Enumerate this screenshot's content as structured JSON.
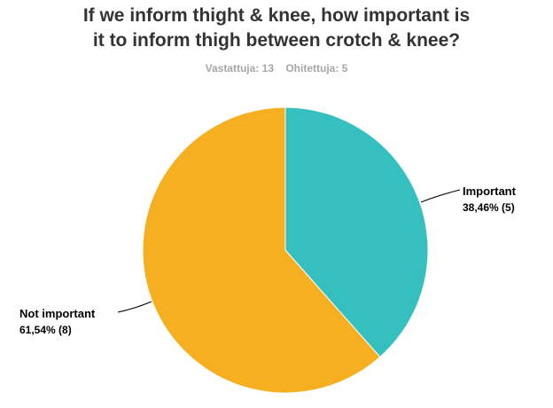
{
  "title_line1": "If we inform thight & knee, how important is",
  "title_line2": "it to inform thigh between crotch & knee?",
  "stats": {
    "answered": "Vastattuja: 13",
    "skipped": "Ohitettuja: 5"
  },
  "chart_data": {
    "type": "pie",
    "title": "If we inform thight & knee, how important is it to inform thigh between crotch & knee?",
    "slices": [
      {
        "label": "Important",
        "percent": 38.46,
        "count": 5,
        "display": "38,46% (5)",
        "color": "#35bfbf"
      },
      {
        "label": "Not important",
        "percent": 61.54,
        "count": 8,
        "display": "61,54% (8)",
        "color": "#f5af21"
      }
    ]
  }
}
